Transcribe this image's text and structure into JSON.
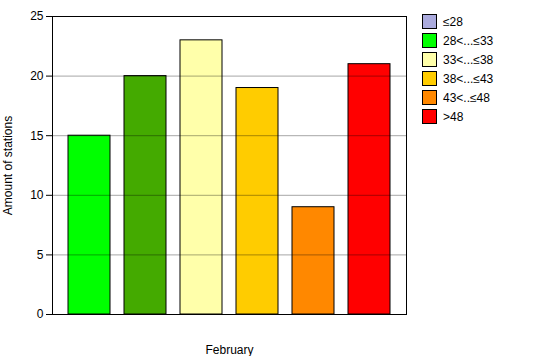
{
  "chart_data": {
    "type": "bar",
    "categories": [
      null,
      null,
      null,
      null,
      null,
      null
    ],
    "values": [
      15,
      20,
      23,
      19,
      9,
      21
    ],
    "colors": [
      "#00ff00",
      "#44aa00",
      "#ffffaa",
      "#ffcc00",
      "#ff8800",
      "#ff0000"
    ],
    "xlabel": "February",
    "ylabel": "Amount of stations",
    "ylim": [
      0,
      25
    ],
    "yticks": [
      0,
      5,
      10,
      15,
      20,
      25
    ],
    "grid": true,
    "tick_labels": "y",
    "legend": "upper right",
    "legend_labels": [
      "≤28",
      "28<...≤33",
      "33<...≤38",
      "38<...≤43",
      "43<..≤48",
      ">48"
    ],
    "legend_colors": [
      "#aaaadd",
      "#00ff00",
      "#ffffaa",
      "#ffcc00",
      "#ff8800",
      "#ff0000"
    ]
  }
}
